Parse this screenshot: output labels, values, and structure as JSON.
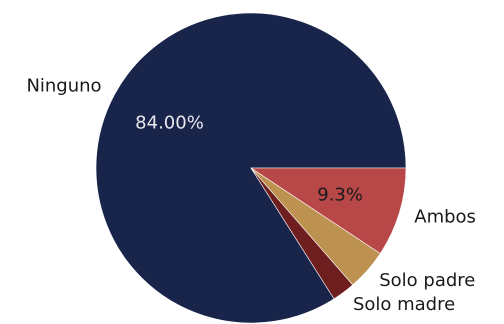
{
  "chart_data": {
    "type": "pie",
    "slices": [
      {
        "label": "Ninguno",
        "value": 84.0,
        "pct_text": "84.00%",
        "color": "#18244a",
        "pct_color": "#e8e8ee"
      },
      {
        "label": "Solo madre",
        "value": 2.4,
        "pct_text": "",
        "color": "#6e1e1e",
        "pct_color": "#1a1a1a"
      },
      {
        "label": "Solo padre",
        "value": 4.3,
        "pct_text": "",
        "color": "#bd9150",
        "pct_color": "#1a1a1a"
      },
      {
        "label": "Ambos",
        "value": 9.3,
        "pct_text": "9.3%",
        "color": "#b84848",
        "pct_color": "#1a1a1a"
      }
    ],
    "start_angle_deg": 0,
    "direction": "counterclockwise",
    "edge_color": "#ffffff"
  }
}
